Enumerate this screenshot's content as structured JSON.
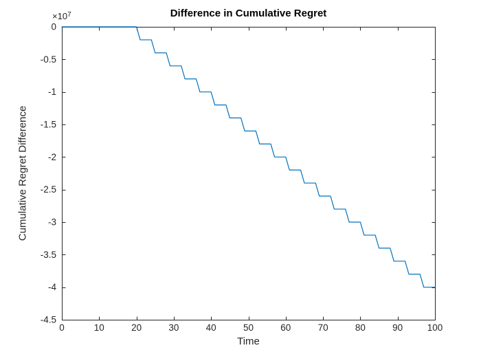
{
  "window": {
    "background_color": "#ffffff"
  },
  "style": {
    "axis_color": "#262626",
    "tick_label_color": "#262626",
    "title_color": "#000000",
    "line_color": "#0072BD"
  },
  "chart_data": {
    "type": "line",
    "title": "Difference in Cumulative Regret",
    "xlabel": "Time",
    "ylabel": "Cumulative Regret Difference",
    "y_axis_exponent": {
      "base": "×10",
      "power": "7"
    },
    "xlim": [
      0,
      100
    ],
    "ylim": [
      -4.5,
      0
    ],
    "y_unit_multiplier": 10000000,
    "grid": false,
    "box": true,
    "tick_direction": "in",
    "legend_position": "none",
    "x_ticks": [
      0,
      10,
      20,
      30,
      40,
      50,
      60,
      70,
      80,
      90,
      100
    ],
    "x_tick_labels": [
      "0",
      "10",
      "20",
      "30",
      "40",
      "50",
      "60",
      "70",
      "80",
      "90",
      "100"
    ],
    "y_ticks": [
      0,
      -0.5,
      -1,
      -1.5,
      -2,
      -2.5,
      -3,
      -3.5,
      -4,
      -4.5
    ],
    "y_tick_labels": [
      "0",
      "-0.5",
      "-1",
      "-1.5",
      "-2",
      "-2.5",
      "-3",
      "-3.5",
      "-4",
      "-4.5"
    ],
    "series": [
      {
        "name": "cumulative-regret-difference",
        "color": "#0072BD",
        "line_width": 1.2,
        "marker": "none",
        "x": [
          0,
          20,
          21,
          24,
          25,
          28,
          29,
          32,
          33,
          36,
          37,
          40,
          41,
          44,
          45,
          48,
          49,
          52,
          53,
          56,
          57,
          60,
          61,
          64,
          65,
          68,
          69,
          72,
          73,
          76,
          77,
          80,
          81,
          84,
          85,
          88,
          89,
          92,
          93,
          96,
          97,
          100
        ],
        "y_times_1e7": [
          0,
          0,
          -0.2,
          -0.2,
          -0.4,
          -0.4,
          -0.6,
          -0.6,
          -0.8,
          -0.8,
          -1.0,
          -1.0,
          -1.2,
          -1.2,
          -1.4,
          -1.4,
          -1.6,
          -1.6,
          -1.8,
          -1.8,
          -2.0,
          -2.0,
          -2.2,
          -2.2,
          -2.4,
          -2.4,
          -2.6,
          -2.6,
          -2.8,
          -2.8,
          -3.0,
          -3.0,
          -3.2,
          -3.2,
          -3.4,
          -3.4,
          -3.6,
          -3.6,
          -3.8,
          -3.8,
          -4.0,
          -4.0
        ]
      }
    ]
  }
}
